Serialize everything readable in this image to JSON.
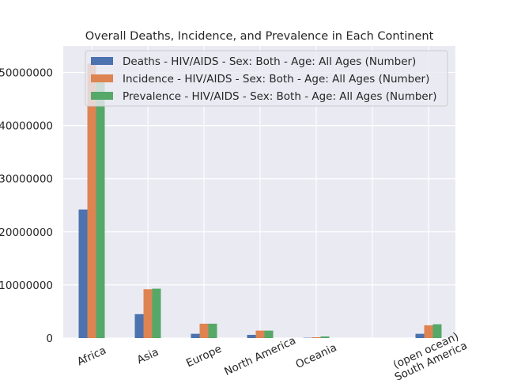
{
  "chart_data": {
    "type": "bar",
    "title": "Overall Deaths, Incidence, and Prevalence in Each Continent",
    "xlabel": "",
    "ylabel": "",
    "categories": [
      "Africa",
      "Asia",
      "Europe",
      "North America",
      "Oceania",
      "Other (open ocean)",
      "South America"
    ],
    "category_labels": [
      [
        "Africa"
      ],
      [
        "Asia"
      ],
      [
        "Europe"
      ],
      [
        "North America"
      ],
      [
        "Oceania"
      ],
      [
        "(open ocean)",
        "South America"
      ]
    ],
    "series": [
      {
        "name": "Deaths - HIV/AIDS - Sex: Both - Age: All Ages (Number)",
        "color": "#4c72b0",
        "values": [
          24200000,
          4500000,
          800000,
          600000,
          50000,
          0,
          800000
        ]
      },
      {
        "name": "Incidence - HIV/AIDS - Sex: Both - Age: All Ages (Number)",
        "color": "#dd8452",
        "values": [
          51700000,
          9200000,
          2700000,
          1400000,
          150000,
          0,
          2400000
        ]
      },
      {
        "name": "Prevalence - HIV/AIDS - Sex: Both - Age: All Ages (Number)",
        "color": "#55a868",
        "values": [
          48800000,
          9300000,
          2700000,
          1400000,
          300000,
          0,
          2600000
        ]
      }
    ],
    "yticks": [
      0,
      10000000,
      20000000,
      30000000,
      40000000,
      50000000
    ],
    "ytick_labels": [
      "0",
      "10000000",
      "20000000",
      "30000000",
      "40000000",
      "50000000"
    ],
    "ylim": [
      0,
      55000000
    ],
    "grid": true,
    "legend_position": "top-right"
  }
}
